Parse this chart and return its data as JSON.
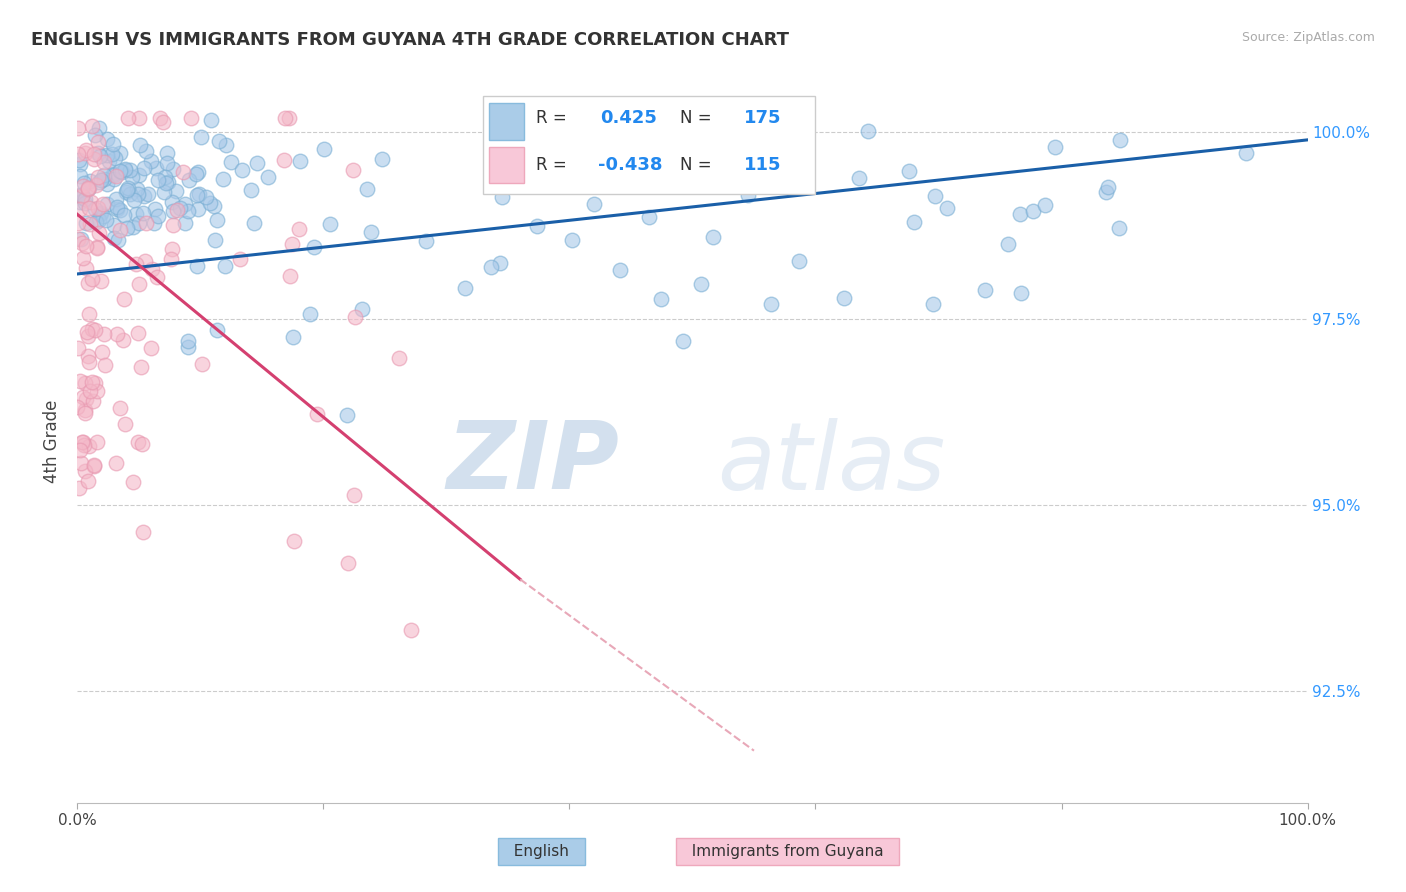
{
  "title": "ENGLISH VS IMMIGRANTS FROM GUYANA 4TH GRADE CORRELATION CHART",
  "source": "Source: ZipAtlas.com",
  "ylabel": "4th Grade",
  "yaxis_labels": [
    "92.5%",
    "95.0%",
    "97.5%",
    "100.0%"
  ],
  "yaxis_values": [
    0.925,
    0.95,
    0.975,
    1.0
  ],
  "bottom_legend": [
    "English",
    "Immigrants from Guyana"
  ],
  "english_color": "#a8c8e8",
  "english_edge": "#7aafd4",
  "guyana_color": "#f4b8c8",
  "guyana_edge": "#e898b0",
  "english_line_color": "#1a5fa8",
  "guyana_line_color": "#d44070",
  "guyana_line_dashed_color": "#e8a8b8",
  "background": "#ffffff",
  "grid_color": "#cccccc",
  "xlim": [
    0.0,
    1.0
  ],
  "ylim": [
    0.91,
    1.007
  ],
  "R_english": 0.425,
  "N_english": 175,
  "R_guyana": -0.438,
  "N_guyana": 115,
  "legend_R_english": "0.425",
  "legend_N_english": "175",
  "legend_R_guyana": "-0.438",
  "legend_N_guyana": "115"
}
